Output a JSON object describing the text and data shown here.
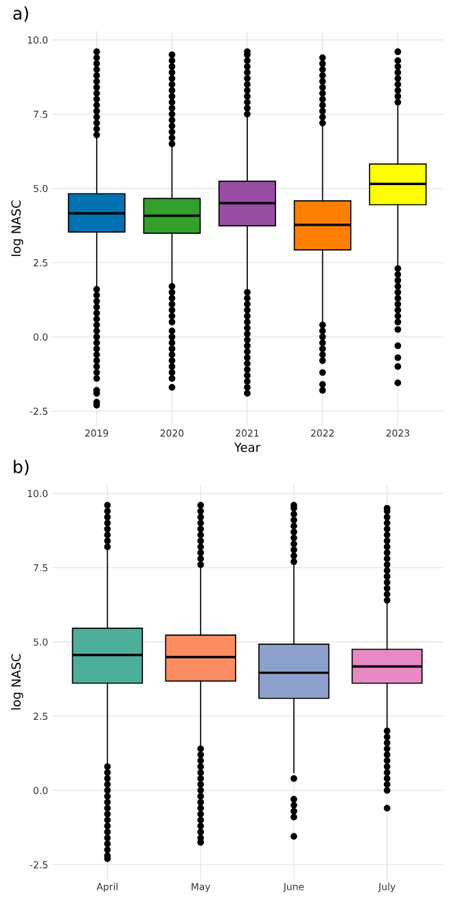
{
  "chart_data": [
    {
      "type": "box",
      "title": "a)",
      "xlabel": "Year",
      "ylabel": "log NASC",
      "categories": [
        "2019",
        "2020",
        "2021",
        "2022",
        "2023"
      ],
      "colors": [
        "#0072b2",
        "#33a02c",
        "#984ea3",
        "#ff7f00",
        "#ffff00"
      ],
      "boxes": [
        {
          "low": 1.66,
          "q1": 3.53,
          "median": 4.16,
          "q3": 4.82,
          "high": 6.7,
          "outliers": [
            6.8,
            7.0,
            7.2,
            7.4,
            7.6,
            7.8,
            8.0,
            8.2,
            8.4,
            8.6,
            8.8,
            9.0,
            9.2,
            9.4,
            9.6,
            1.6,
            1.4,
            1.2,
            1.0,
            0.8,
            0.6,
            0.4,
            0.2,
            0.0,
            -0.2,
            -0.4,
            -0.6,
            -0.8,
            -1.0,
            -1.2,
            -1.4,
            -1.8,
            -1.9,
            -2.2,
            -2.3
          ]
        },
        {
          "low": 1.7,
          "q1": 3.49,
          "median": 4.08,
          "q3": 4.66,
          "high": 6.45,
          "outliers": [
            6.5,
            6.7,
            6.9,
            7.1,
            7.3,
            7.5,
            7.7,
            7.9,
            8.1,
            8.3,
            8.5,
            8.7,
            8.9,
            9.1,
            9.3,
            9.5,
            1.7,
            1.5,
            1.3,
            1.1,
            0.9,
            0.7,
            0.5,
            0.2,
            0.0,
            -0.2,
            -0.4,
            -0.6,
            -0.8,
            -1.0,
            -1.2,
            -1.4,
            -1.7
          ]
        },
        {
          "low": 1.5,
          "q1": 3.74,
          "median": 4.5,
          "q3": 5.24,
          "high": 7.45,
          "outliers": [
            7.5,
            7.7,
            7.9,
            8.1,
            8.3,
            8.5,
            8.7,
            8.9,
            9.1,
            9.3,
            9.5,
            9.6,
            1.5,
            1.3,
            1.1,
            0.9,
            0.7,
            0.5,
            0.3,
            0.1,
            -0.1,
            -0.3,
            -0.5,
            -0.7,
            -0.9,
            -1.1,
            -1.3,
            -1.5,
            -1.7,
            -1.9
          ]
        },
        {
          "low": 0.45,
          "q1": 2.93,
          "median": 3.77,
          "q3": 4.58,
          "high": 7.1,
          "outliers": [
            7.2,
            7.4,
            7.6,
            7.8,
            8.0,
            8.2,
            8.4,
            8.6,
            8.8,
            9.0,
            9.2,
            9.4,
            0.4,
            0.2,
            0.0,
            -0.2,
            -0.4,
            -0.6,
            -0.8,
            -1.2,
            -1.6,
            -1.8
          ]
        },
        {
          "low": 2.4,
          "q1": 4.45,
          "median": 5.15,
          "q3": 5.82,
          "high": 7.9,
          "outliers": [
            7.9,
            8.1,
            8.3,
            8.5,
            8.7,
            8.9,
            9.1,
            9.3,
            9.6,
            2.3,
            2.1,
            1.9,
            1.7,
            1.5,
            1.3,
            1.1,
            0.9,
            0.7,
            0.5,
            0.25,
            -0.3,
            -0.7,
            -1.0,
            -1.55
          ]
        }
      ],
      "ylim": [
        -3.0,
        10.3
      ],
      "yticks": [
        {
          "value": -2.5,
          "label": "-2.5"
        },
        {
          "value": 0,
          "label": "0.0"
        },
        {
          "value": 2.5,
          "label": "2.5"
        },
        {
          "value": 5,
          "label": "5.0"
        },
        {
          "value": 7.5,
          "label": "7.5"
        },
        {
          "value": 10,
          "label": "10.0"
        }
      ],
      "grid": true
    },
    {
      "type": "box",
      "title": "b)",
      "ylabel": "log NASC",
      "categories": [
        "April",
        "May",
        "June",
        "July"
      ],
      "colors": [
        "#4daf9a",
        "#fc8d62",
        "#8da0cb",
        "#e78ac3"
      ],
      "boxes": [
        {
          "low": 0.9,
          "q1": 3.61,
          "median": 4.56,
          "q3": 5.46,
          "high": 8.2,
          "outliers": [
            8.2,
            8.4,
            8.6,
            8.8,
            9.0,
            9.2,
            9.4,
            9.6,
            0.8,
            0.6,
            0.4,
            0.2,
            0.0,
            -0.2,
            -0.4,
            -0.6,
            -0.8,
            -1.0,
            -1.2,
            -1.4,
            -1.6,
            -1.8,
            -2.0,
            -2.2,
            -2.3
          ]
        },
        {
          "low": 1.4,
          "q1": 3.68,
          "median": 4.49,
          "q3": 5.23,
          "high": 7.5,
          "outliers": [
            7.6,
            7.8,
            8.0,
            8.2,
            8.4,
            8.6,
            8.8,
            9.0,
            9.2,
            9.4,
            9.6,
            1.4,
            1.2,
            1.0,
            0.8,
            0.6,
            0.4,
            0.2,
            0.0,
            -0.2,
            -0.4,
            -0.6,
            -0.8,
            -1.0,
            -1.2,
            -1.4,
            -1.6,
            -1.75
          ]
        },
        {
          "low": 0.6,
          "q1": 3.1,
          "median": 3.96,
          "q3": 4.92,
          "high": 7.65,
          "outliers": [
            7.7,
            7.9,
            8.1,
            8.3,
            8.5,
            8.7,
            8.9,
            9.1,
            9.3,
            9.5,
            9.6,
            0.4,
            -0.3,
            -0.5,
            -0.7,
            -0.9,
            -1.55
          ]
        },
        {
          "low": 2.0,
          "q1": 3.61,
          "median": 4.17,
          "q3": 4.75,
          "high": 6.3,
          "outliers": [
            6.4,
            6.6,
            6.8,
            7.0,
            7.2,
            7.4,
            7.6,
            7.8,
            8.0,
            8.2,
            8.4,
            8.6,
            8.8,
            9.0,
            9.2,
            9.4,
            9.5,
            2.0,
            1.8,
            1.6,
            1.4,
            1.2,
            1.0,
            0.8,
            0.6,
            0.4,
            0.2,
            0.0,
            -0.6
          ]
        }
      ],
      "ylim": [
        -3.0,
        10.3
      ],
      "yticks": [
        {
          "value": -2.5,
          "label": "-2.5"
        },
        {
          "value": 0,
          "label": "0.0"
        },
        {
          "value": 2.5,
          "label": "2.5"
        },
        {
          "value": 5,
          "label": "5.0"
        },
        {
          "value": 7.5,
          "label": "7.5"
        },
        {
          "value": 10,
          "label": "10.0"
        }
      ],
      "grid": true
    }
  ]
}
